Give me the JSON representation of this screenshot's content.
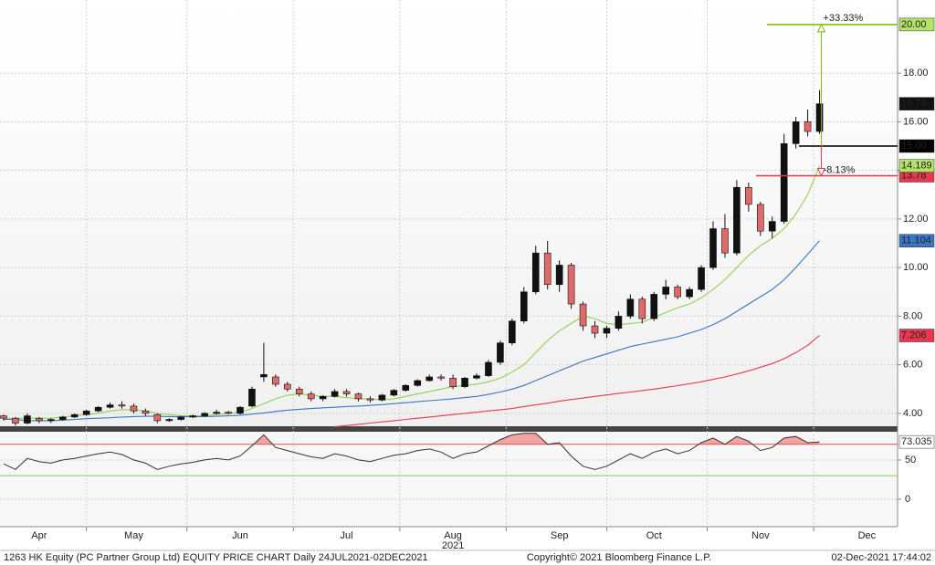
{
  "chart_data": [
    {
      "type": "candlestick",
      "categories": [
        null,
        null,
        null,
        "Apr",
        null,
        null,
        null,
        null,
        null,
        null,
        null,
        "May",
        null,
        null,
        null,
        null,
        null,
        null,
        null,
        null,
        "Jun",
        null,
        null,
        null,
        null,
        null,
        null,
        null,
        null,
        "Jul",
        null,
        null,
        null,
        null,
        null,
        null,
        null,
        null,
        "Aug",
        null,
        null,
        null,
        null,
        null,
        null,
        null,
        null,
        "Sep",
        null,
        null,
        null,
        null,
        null,
        null,
        null,
        "Oct",
        null,
        null,
        null,
        null,
        null,
        null,
        null,
        null,
        "Nov",
        null,
        null,
        null,
        null,
        null,
        null,
        null,
        null,
        "Dec"
      ],
      "open": [
        3.9,
        3.8,
        3.6,
        3.8,
        3.7,
        3.75,
        3.85,
        3.95,
        4.1,
        4.25,
        4.35,
        4.3,
        4.1,
        3.95,
        3.7,
        3.75,
        3.85,
        3.9,
        4.0,
        4.05,
        4.0,
        4.3,
        5.5,
        5.5,
        5.2,
        5.0,
        4.8,
        4.6,
        4.7,
        4.9,
        4.8,
        4.6,
        4.55,
        4.75,
        4.95,
        5.15,
        5.35,
        5.5,
        5.45,
        5.1,
        5.45,
        5.55,
        6.1,
        6.9,
        7.8,
        9.0,
        10.6,
        9.3,
        10.1,
        8.5,
        7.6,
        7.3,
        7.5,
        8.0,
        8.7,
        7.9,
        8.9,
        9.2,
        8.8,
        9.1,
        10.0,
        11.6,
        10.6,
        13.3,
        12.6,
        11.5,
        11.9,
        15.1,
        16.0,
        15.6,
        null,
        null,
        null,
        null
      ],
      "high": [
        3.95,
        3.85,
        4.0,
        3.85,
        3.8,
        3.9,
        4.0,
        4.15,
        4.3,
        4.45,
        4.5,
        4.4,
        4.2,
        4.0,
        3.8,
        3.9,
        3.95,
        4.05,
        4.15,
        4.1,
        4.3,
        5.1,
        6.9,
        5.6,
        5.3,
        5.1,
        4.9,
        4.75,
        5.0,
        5.0,
        4.85,
        4.7,
        4.8,
        5.0,
        5.2,
        5.4,
        5.6,
        5.6,
        5.6,
        5.5,
        5.65,
        6.2,
        7.0,
        7.9,
        9.2,
        10.9,
        11.1,
        10.3,
        10.2,
        8.6,
        7.8,
        7.6,
        8.2,
        8.9,
        8.8,
        9.0,
        9.5,
        9.3,
        9.2,
        10.1,
        11.9,
        12.2,
        13.6,
        13.5,
        12.7,
        12.1,
        15.5,
        16.2,
        16.5,
        17.3,
        null,
        null,
        null,
        null
      ],
      "low": [
        3.7,
        3.5,
        3.55,
        3.6,
        3.6,
        3.7,
        3.8,
        3.9,
        4.05,
        4.2,
        4.2,
        4.0,
        3.9,
        3.6,
        3.65,
        3.7,
        3.8,
        3.85,
        3.95,
        3.95,
        3.95,
        4.25,
        5.3,
        5.1,
        4.9,
        4.7,
        4.5,
        4.5,
        4.65,
        4.7,
        4.5,
        4.45,
        4.5,
        4.7,
        4.9,
        5.1,
        5.3,
        5.35,
        5.0,
        5.05,
        5.4,
        5.5,
        6.0,
        6.8,
        7.7,
        8.9,
        9.1,
        9.0,
        8.3,
        7.4,
        7.1,
        7.1,
        7.4,
        7.9,
        7.7,
        7.8,
        8.7,
        8.7,
        8.7,
        9.0,
        9.9,
        10.4,
        10.5,
        12.3,
        11.3,
        11.2,
        11.8,
        14.9,
        15.4,
        15.5,
        null,
        null,
        null,
        null
      ],
      "close": [
        3.8,
        3.6,
        3.9,
        3.7,
        3.75,
        3.85,
        3.95,
        4.1,
        4.25,
        4.35,
        4.3,
        4.1,
        4.0,
        3.7,
        3.75,
        3.85,
        3.9,
        4.0,
        4.05,
        4.0,
        4.25,
        5.0,
        5.6,
        5.2,
        5.0,
        4.8,
        4.6,
        4.7,
        4.9,
        4.8,
        4.6,
        4.55,
        4.75,
        4.95,
        5.15,
        5.35,
        5.5,
        5.45,
        5.1,
        5.45,
        5.55,
        6.1,
        6.9,
        7.8,
        9.0,
        10.6,
        9.3,
        10.1,
        8.5,
        7.6,
        7.3,
        7.5,
        8.0,
        8.7,
        7.9,
        8.9,
        9.2,
        8.8,
        9.1,
        10.0,
        11.6,
        10.6,
        13.3,
        12.6,
        11.5,
        11.9,
        15.1,
        16.0,
        15.6,
        16.74,
        null,
        null,
        null,
        null
      ],
      "up_color": "#111111",
      "down_color": "#e06a6a",
      "overlays": [
        {
          "color": "#8fd14f",
          "values": [
            3.8,
            3.8,
            3.8,
            3.8,
            3.8,
            3.85,
            3.9,
            3.95,
            4.0,
            4.1,
            4.15,
            4.15,
            4.1,
            4.0,
            3.95,
            3.9,
            3.9,
            3.9,
            3.95,
            4.0,
            4.05,
            4.2,
            4.4,
            4.6,
            4.75,
            4.8,
            4.75,
            4.7,
            4.7,
            4.65,
            4.6,
            4.6,
            4.55,
            4.6,
            4.7,
            4.8,
            4.9,
            5.0,
            5.1,
            5.15,
            5.2,
            5.3,
            5.45,
            5.7,
            6.0,
            6.5,
            7.0,
            7.4,
            7.7,
            8.0,
            7.9,
            7.7,
            7.65,
            7.7,
            7.75,
            7.95,
            8.15,
            8.35,
            8.5,
            8.75,
            9.1,
            9.5,
            10.0,
            10.5,
            10.9,
            11.2,
            11.6,
            12.2,
            13.0,
            14.189,
            null,
            null,
            null,
            null
          ]
        },
        {
          "color": "#3a76c4",
          "values": [
            3.75,
            3.75,
            3.7,
            3.7,
            3.7,
            3.72,
            3.75,
            3.78,
            3.8,
            3.82,
            3.85,
            3.87,
            3.88,
            3.88,
            3.87,
            3.86,
            3.86,
            3.87,
            3.88,
            3.9,
            3.92,
            3.97,
            4.02,
            4.08,
            4.13,
            4.17,
            4.2,
            4.23,
            4.25,
            4.28,
            4.3,
            4.33,
            4.36,
            4.4,
            4.44,
            4.48,
            4.52,
            4.56,
            4.6,
            4.65,
            4.7,
            4.78,
            4.88,
            5.0,
            5.15,
            5.35,
            5.55,
            5.75,
            5.95,
            6.15,
            6.3,
            6.45,
            6.6,
            6.75,
            6.85,
            6.95,
            7.05,
            7.15,
            7.3,
            7.45,
            7.65,
            7.9,
            8.2,
            8.5,
            8.8,
            9.1,
            9.5,
            10.0,
            10.55,
            11.104,
            null,
            null,
            null,
            null
          ]
        },
        {
          "color": "#e8384f",
          "values": [
            null,
            null,
            null,
            null,
            null,
            null,
            null,
            null,
            null,
            null,
            null,
            null,
            null,
            null,
            null,
            null,
            null,
            null,
            null,
            null,
            null,
            null,
            null,
            null,
            null,
            null,
            null,
            null,
            3.45,
            3.5,
            3.55,
            3.6,
            3.65,
            3.7,
            3.75,
            3.8,
            3.85,
            3.9,
            3.95,
            4.0,
            4.05,
            4.1,
            4.15,
            4.2,
            4.28,
            4.35,
            4.42,
            4.5,
            4.57,
            4.63,
            4.7,
            4.76,
            4.82,
            4.88,
            4.94,
            5.0,
            5.07,
            5.14,
            5.22,
            5.3,
            5.4,
            5.5,
            5.62,
            5.75,
            5.9,
            6.05,
            6.25,
            6.5,
            6.8,
            7.206,
            null,
            null,
            null,
            null
          ]
        }
      ],
      "levels": [
        {
          "value": 20,
          "label": "20.00",
          "color": "#7fba00"
        },
        {
          "value": 15,
          "label": "15.00",
          "color": "#000000"
        },
        {
          "value": 13.78,
          "color": "#e8384f"
        }
      ],
      "annotations": [
        {
          "text": "+33.33%",
          "color": "#7fba00"
        },
        {
          "text": "-8.13%",
          "color": "#e8384f"
        }
      ],
      "ylim": [
        3.47,
        21.01
      ],
      "yticks": [
        {
          "value": 4,
          "label": "4.00"
        },
        {
          "value": 6,
          "label": "6.00"
        },
        {
          "value": 8,
          "label": "8.00"
        },
        {
          "value": 10,
          "label": "10.00"
        },
        {
          "value": 12,
          "label": "12.00"
        },
        {
          "value": 14,
          "label": "14.00"
        },
        {
          "value": 16,
          "label": "16.00"
        },
        {
          "value": 18,
          "label": "18.00"
        }
      ],
      "grid": true,
      "year_label": "2021"
    },
    {
      "type": "line",
      "values": [
        45,
        38,
        52,
        48,
        46,
        50,
        52,
        55,
        58,
        60,
        57,
        50,
        46,
        38,
        42,
        45,
        47,
        50,
        52,
        50,
        55,
        68,
        82,
        66,
        62,
        58,
        54,
        52,
        58,
        55,
        50,
        48,
        52,
        56,
        58,
        62,
        64,
        60,
        52,
        58,
        60,
        68,
        76,
        82,
        84,
        84,
        70,
        72,
        55,
        42,
        38,
        42,
        50,
        58,
        52,
        60,
        64,
        58,
        62,
        72,
        78,
        70,
        80,
        74,
        62,
        66,
        78,
        80,
        72,
        73.035,
        null,
        null,
        null,
        null
      ],
      "color": "#333333",
      "levels": [
        {
          "value": 70,
          "color": "#d9534f"
        },
        {
          "value": 30,
          "color": "#7fd14f"
        }
      ],
      "ylim": [
        -35,
        86
      ],
      "yticks": [
        0,
        50
      ],
      "grid": true
    }
  ],
  "footer": {
    "left": "1263 HK Equity (PC Partner Group Ltd) EQUITY PRICE CHART  Daily 24JUL2021-02DEC2021",
    "center": "Copyright© 2021 Bloomberg Finance L.P.",
    "right": "02-Dec-2021 17:44:02"
  }
}
